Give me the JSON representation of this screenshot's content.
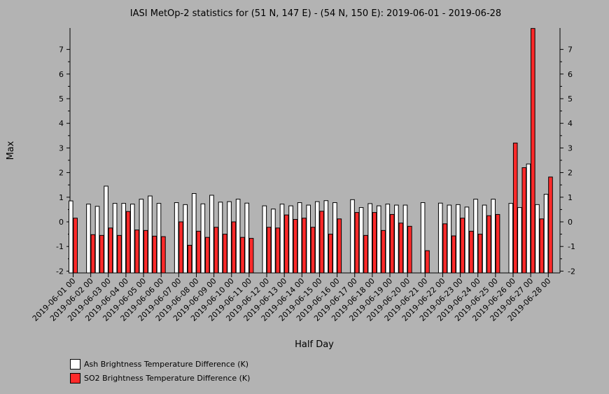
{
  "chart_data": {
    "type": "bar",
    "title": "IASI MetOp-2 statistics for (51 N, 147 E) - (54 N, 150 E): 2019-06-01 - 2019-06-28",
    "xlabel": "Half Day",
    "ylabel": "Max",
    "ylim": [
      -2,
      8
    ],
    "yticks": [
      -2,
      -1,
      0,
      1,
      2,
      3,
      4,
      5,
      6,
      7
    ],
    "grid": false,
    "legend_position": "bottom-left",
    "categories": [
      "2019-06-01 00",
      "2019-06-01 12",
      "2019-06-02 00",
      "2019-06-02 12",
      "2019-06-03 00",
      "2019-06-03 12",
      "2019-06-04 00",
      "2019-06-04 12",
      "2019-06-05 00",
      "2019-06-05 12",
      "2019-06-06 00",
      "2019-06-06 12",
      "2019-06-07 00",
      "2019-06-07 12",
      "2019-06-08 00",
      "2019-06-08 12",
      "2019-06-09 00",
      "2019-06-09 12",
      "2019-06-10 00",
      "2019-06-10 12",
      "2019-06-11 00",
      "2019-06-11 12",
      "2019-06-12 00",
      "2019-06-12 12",
      "2019-06-13 00",
      "2019-06-13 12",
      "2019-06-14 00",
      "2019-06-14 12",
      "2019-06-15 00",
      "2019-06-15 12",
      "2019-06-16 00",
      "2019-06-16 12",
      "2019-06-17 00",
      "2019-06-17 12",
      "2019-06-18 00",
      "2019-06-18 12",
      "2019-06-19 00",
      "2019-06-19 12",
      "2019-06-20 00",
      "2019-06-20 12",
      "2019-06-21 00",
      "2019-06-21 12",
      "2019-06-22 00",
      "2019-06-22 12",
      "2019-06-23 00",
      "2019-06-23 12",
      "2019-06-24 00",
      "2019-06-24 12",
      "2019-06-25 00",
      "2019-06-25 12",
      "2019-06-26 00",
      "2019-06-26 12",
      "2019-06-27 00",
      "2019-06-27 12",
      "2019-06-28 00"
    ],
    "tick_labels": [
      "2019-06-01 00",
      "2019-06-02 00",
      "2019-06-03 00",
      "2019-06-04 00",
      "2019-06-05 00",
      "2019-06-06 00",
      "2019-06-07 00",
      "2019-06-08 00",
      "2019-06-09 00",
      "2019-06-10 00",
      "2019-06-11 00",
      "2019-06-12 00",
      "2019-06-13 00",
      "2019-06-14 00",
      "2019-06-15 00",
      "2019-06-16 00",
      "2019-06-17 00",
      "2019-06-18 00",
      "2019-06-19 00",
      "2019-06-20 00",
      "2019-06-21 00",
      "2019-06-22 00",
      "2019-06-23 00",
      "2019-06-24 00",
      "2019-06-25 00",
      "2019-06-26 00",
      "2019-06-27 00",
      "2019-06-28 00"
    ],
    "series": [
      {
        "name": "Ash Brightness Temperature Difference (K)",
        "color": "#ffffff",
        "values": [
          0.85,
          null,
          0.72,
          0.63,
          1.45,
          0.75,
          0.75,
          0.72,
          0.92,
          1.05,
          0.75,
          null,
          0.78,
          0.7,
          1.15,
          0.73,
          1.08,
          0.8,
          0.82,
          0.92,
          0.76,
          null,
          0.65,
          0.52,
          0.72,
          0.65,
          0.78,
          0.68,
          0.82,
          0.86,
          0.78,
          null,
          0.9,
          0.58,
          0.74,
          0.65,
          0.72,
          0.68,
          0.68,
          null,
          0.78,
          null,
          0.76,
          0.68,
          0.7,
          0.6,
          0.92,
          0.68,
          0.92,
          null,
          0.75,
          0.58,
          2.35,
          0.7,
          1.12
        ]
      },
      {
        "name": "SO2 Brightness Temperature Difference (K)",
        "color": "#ff2a2a",
        "values": [
          0.15,
          null,
          -0.52,
          -0.55,
          -0.25,
          -0.55,
          0.42,
          -0.33,
          -0.35,
          -0.58,
          -0.6,
          null,
          0.0,
          -0.95,
          -0.38,
          -0.63,
          -0.22,
          -0.5,
          0.0,
          -0.63,
          -0.67,
          null,
          -0.22,
          -0.25,
          0.28,
          0.1,
          0.15,
          -0.22,
          0.43,
          -0.5,
          0.12,
          null,
          0.38,
          -0.55,
          0.38,
          -0.35,
          0.3,
          -0.05,
          -0.18,
          null,
          -1.17,
          null,
          -0.08,
          -0.57,
          0.15,
          -0.38,
          -0.5,
          0.25,
          0.3,
          null,
          3.2,
          2.2,
          7.85,
          0.12,
          1.82
        ]
      }
    ]
  }
}
